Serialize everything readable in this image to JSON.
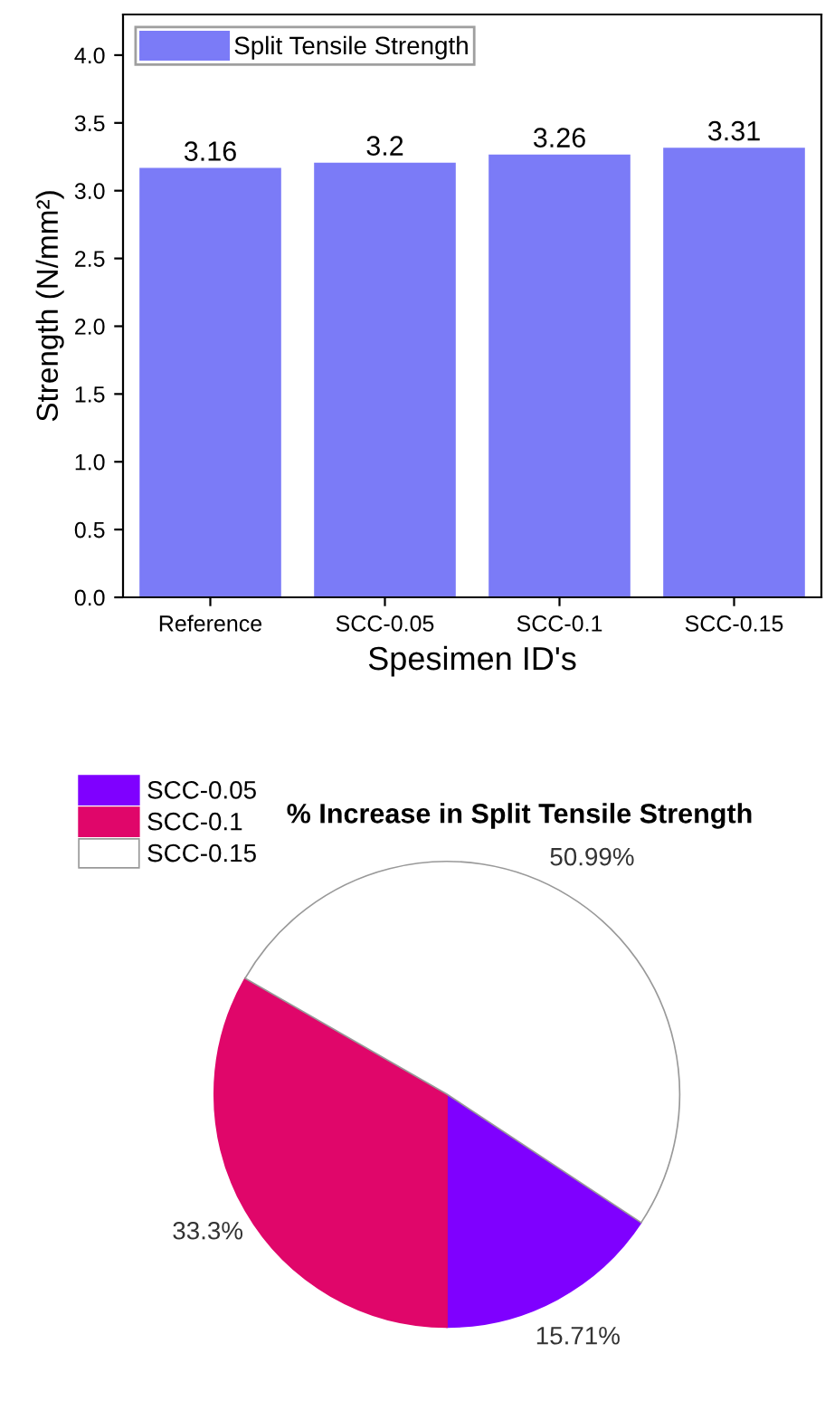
{
  "chart_data": [
    {
      "type": "bar",
      "xlabel": "Spesimen ID's",
      "ylabel": "Strength (N/mm²)",
      "categories": [
        "Reference",
        "SCC-0.05",
        "SCC-0.1",
        "SCC-0.15"
      ],
      "series": [
        {
          "name": "Split Tensile Strength",
          "color": "#7b7bf7",
          "values": [
            3.16,
            3.2,
            3.26,
            3.31
          ]
        }
      ],
      "ylim": [
        0,
        4.3
      ],
      "yticks": [
        {
          "value": 0,
          "label": "0.0"
        },
        0.5,
        {
          "value": 1,
          "label": "1.0"
        },
        1.5,
        {
          "value": 2,
          "label": "2.0"
        },
        2.5,
        {
          "value": 3,
          "label": "3.0"
        },
        3.5,
        {
          "value": 4,
          "label": "4.0"
        }
      ],
      "data_labels": true,
      "legend": "top left",
      "grid": false
    },
    {
      "type": "pie",
      "title": "% Increase in Split Tensile Strength",
      "categories": [
        "SCC-0.05",
        "SCC-0.1",
        "SCC-0.15"
      ],
      "values": [
        15.71,
        33.3,
        50.99
      ],
      "colors": [
        "#7f00ff",
        "#e0066a",
        "#ffffff"
      ],
      "value_labels": [
        "15.71%",
        "33.3%",
        "50.99%"
      ],
      "legend": "top left"
    }
  ]
}
